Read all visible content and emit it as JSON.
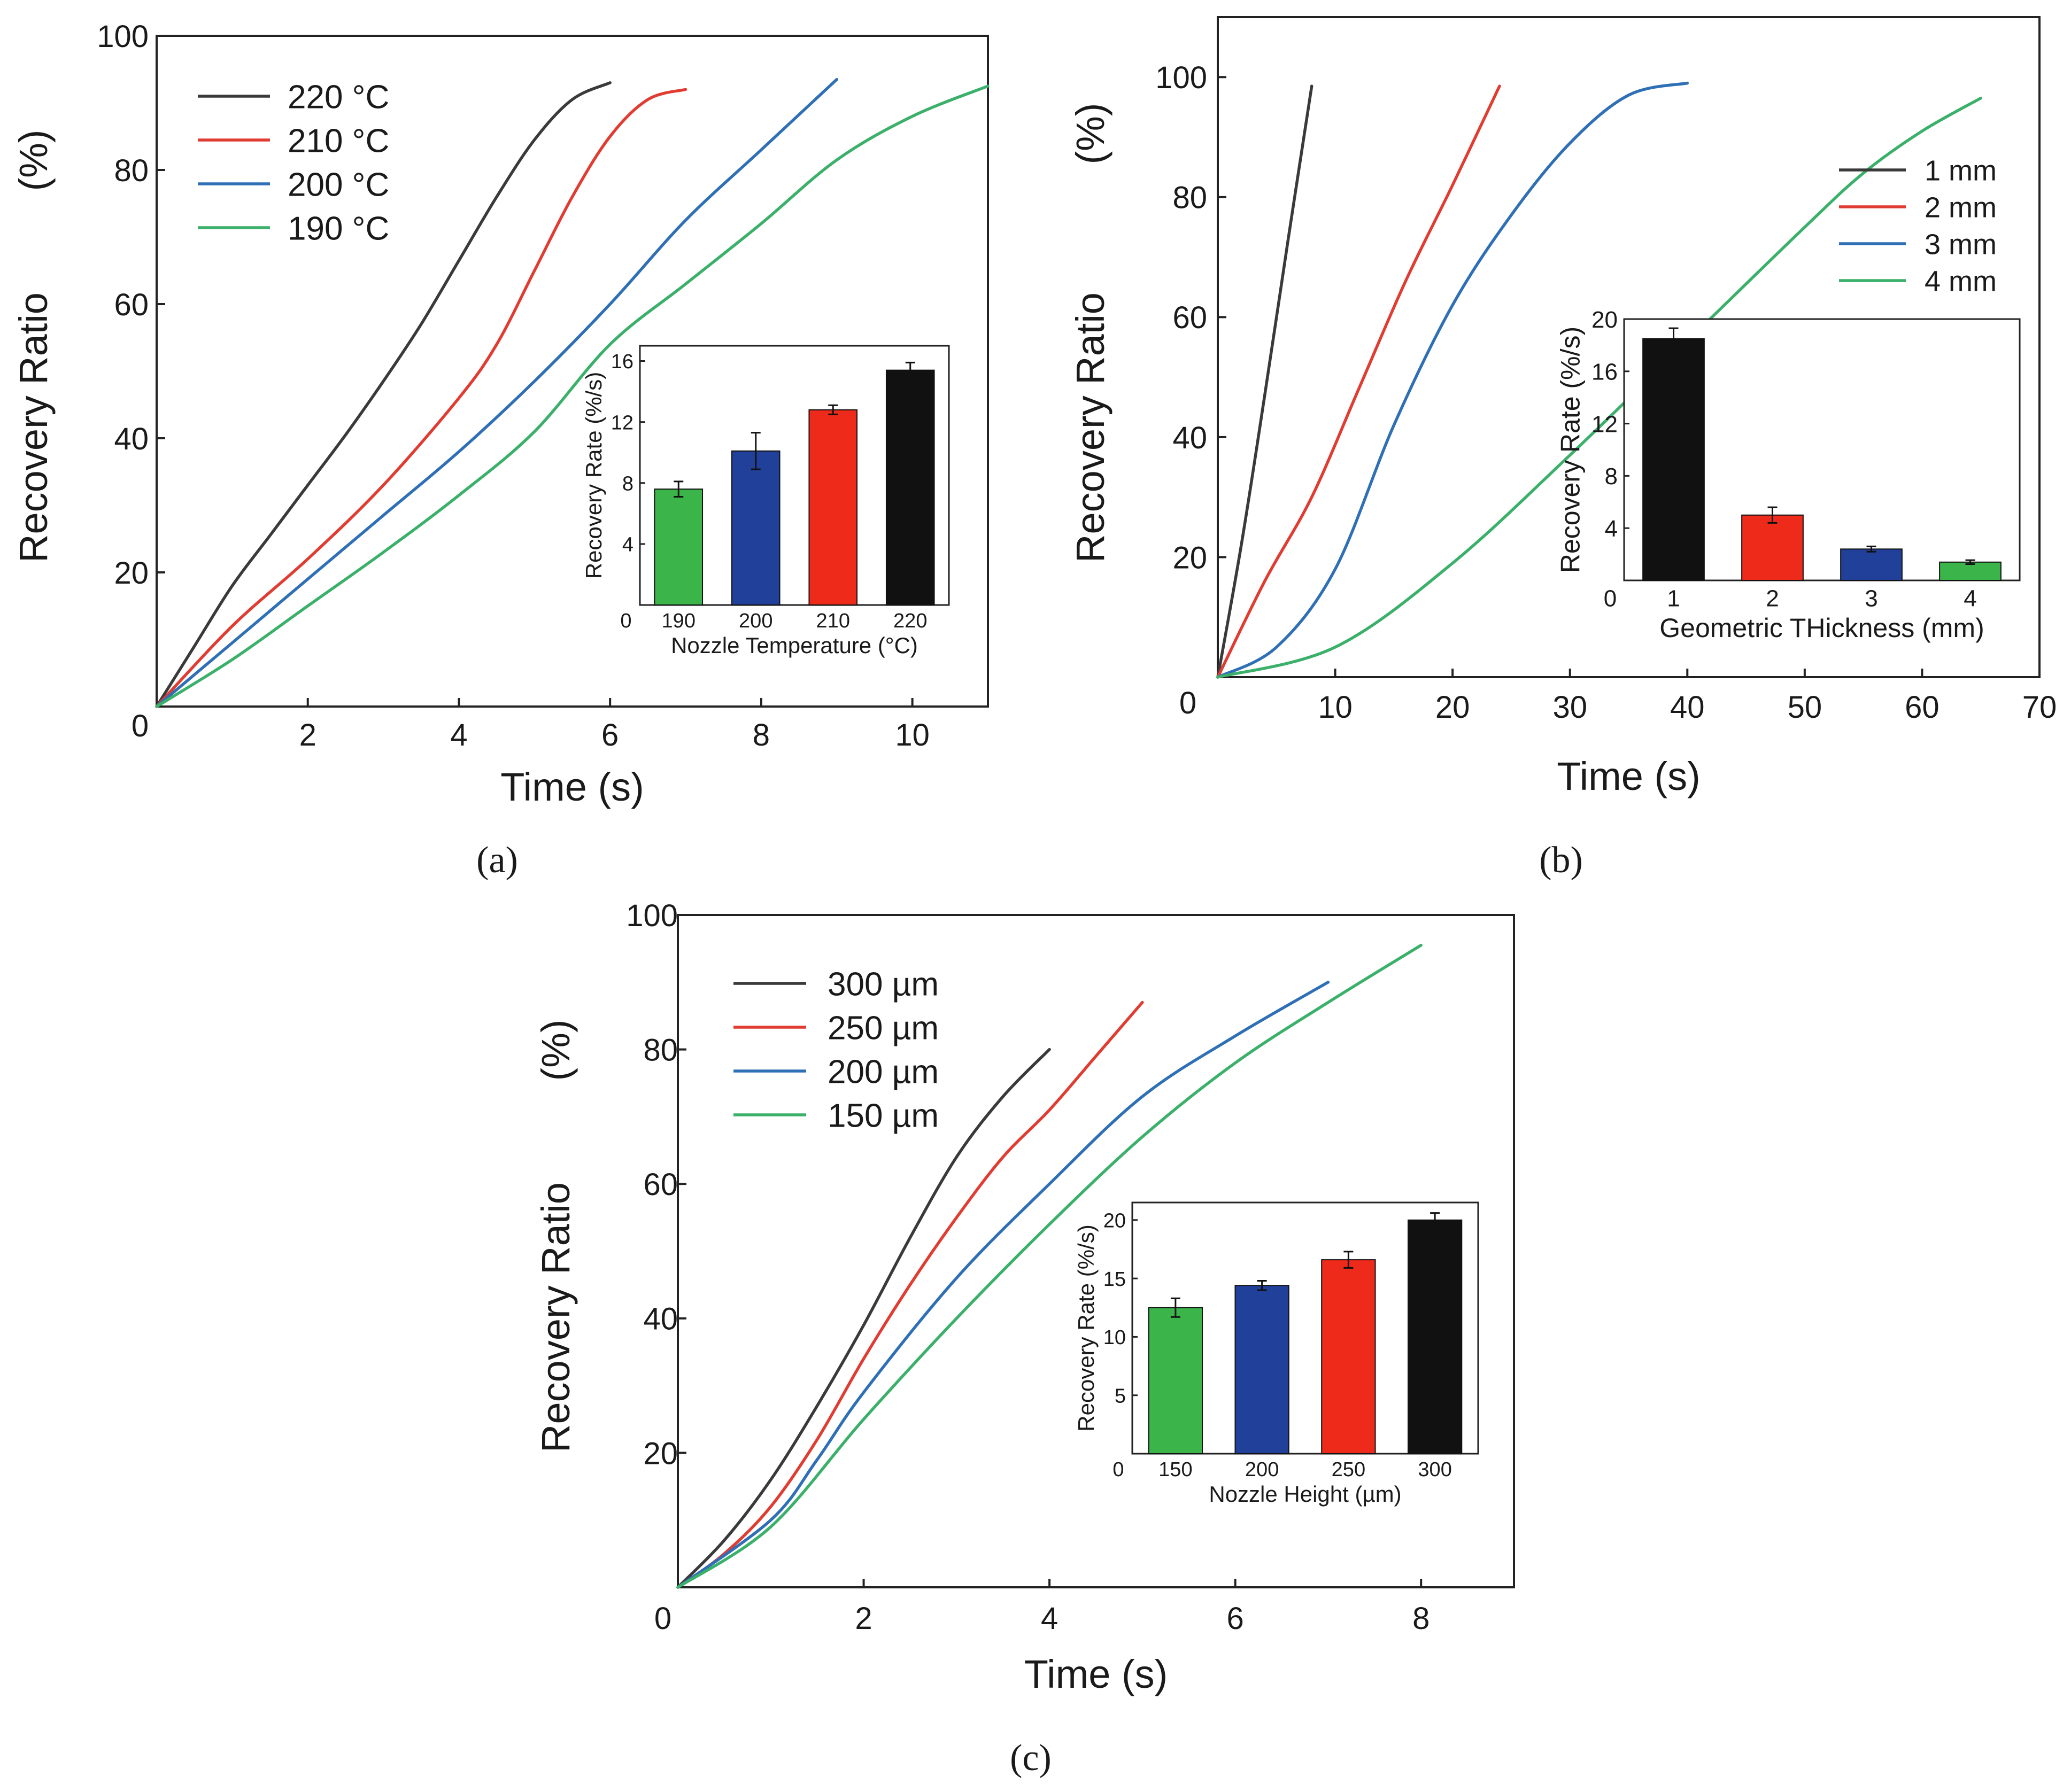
{
  "chart_data": [
    {
      "panel": "a",
      "caption": "(a)",
      "type": "line",
      "xlabel": "Time (s)",
      "ylabel": "Recovery Ratio",
      "ylabel_unit": "(%)",
      "xlim": [
        0,
        11
      ],
      "ylim": [
        0,
        100
      ],
      "xticks": [
        0,
        2,
        4,
        6,
        8,
        10
      ],
      "yticks": [
        0,
        20,
        40,
        60,
        80,
        100
      ],
      "legend_position": "top-left",
      "series": [
        {
          "name": "220 °C",
          "color": "#3a3a3a",
          "points": [
            [
              0,
              0
            ],
            [
              0.5,
              9
            ],
            [
              1,
              18
            ],
            [
              1.5,
              25.5
            ],
            [
              2,
              33
            ],
            [
              2.5,
              40.5
            ],
            [
              3,
              48.5
            ],
            [
              3.5,
              57
            ],
            [
              4,
              66.5
            ],
            [
              4.5,
              76
            ],
            [
              5,
              84.5
            ],
            [
              5.5,
              90.5
            ],
            [
              6,
              93
            ]
          ]
        },
        {
          "name": "210 °C",
          "color": "#e03c32",
          "points": [
            [
              0,
              0
            ],
            [
              1,
              12
            ],
            [
              2,
              22
            ],
            [
              3,
              33
            ],
            [
              4,
              46
            ],
            [
              4.5,
              54
            ],
            [
              5,
              65
            ],
            [
              5.5,
              76
            ],
            [
              6,
              85
            ],
            [
              6.5,
              90.5
            ],
            [
              7,
              92
            ]
          ]
        },
        {
          "name": "200 °C",
          "color": "#2f6fb5",
          "points": [
            [
              0,
              0
            ],
            [
              1,
              9.5
            ],
            [
              2,
              19
            ],
            [
              3,
              28.5
            ],
            [
              4,
              38
            ],
            [
              5,
              48.5
            ],
            [
              6,
              60
            ],
            [
              7,
              72.5
            ],
            [
              8,
              83
            ],
            [
              9,
              93.5
            ]
          ]
        },
        {
          "name": "190 °C",
          "color": "#3bb06a",
          "points": [
            [
              0,
              0
            ],
            [
              1,
              7
            ],
            [
              2,
              15
            ],
            [
              3,
              23
            ],
            [
              4,
              31.5
            ],
            [
              5,
              41
            ],
            [
              6,
              54
            ],
            [
              7,
              63
            ],
            [
              8,
              72
            ],
            [
              9,
              81.5
            ],
            [
              10,
              88
            ],
            [
              11,
              92.5
            ]
          ]
        }
      ],
      "inset": {
        "type": "bar",
        "xlabel": "Nozzle Temperature (°C)",
        "ylabel": "Recovery Rate  (%/s)",
        "ylim": [
          0,
          17
        ],
        "yticks": [
          4,
          8,
          12,
          16
        ],
        "zero_label": "0",
        "categories": [
          "190",
          "200",
          "210",
          "220"
        ],
        "values": [
          7.6,
          10.1,
          12.8,
          15.4
        ],
        "errors": [
          0.5,
          1.2,
          0.3,
          0.5
        ],
        "colors": [
          "#3bb54a",
          "#21409a",
          "#ee2a1b",
          "#111111"
        ]
      }
    },
    {
      "panel": "b",
      "caption": "(b)",
      "type": "line",
      "xlabel": "Time (s)",
      "ylabel": "Recovery Ratio",
      "ylabel_unit": "(%)",
      "xlim": [
        0,
        70
      ],
      "ylim": [
        0,
        110
      ],
      "xticks": [
        0,
        10,
        20,
        30,
        40,
        50,
        60,
        70
      ],
      "yticks": [
        20,
        40,
        60,
        80,
        100
      ],
      "legend_position": "top-right",
      "series": [
        {
          "name": "1 mm",
          "color": "#3a3a3a",
          "points": [
            [
              0,
              0
            ],
            [
              2,
              22
            ],
            [
              4,
              47
            ],
            [
              6,
              73
            ],
            [
              8,
              98.5
            ]
          ]
        },
        {
          "name": "2 mm",
          "color": "#e03c32",
          "points": [
            [
              0,
              0
            ],
            [
              4,
              16
            ],
            [
              8,
              30
            ],
            [
              12,
              48
            ],
            [
              16,
              66
            ],
            [
              20,
              82
            ],
            [
              24,
              98.5
            ]
          ]
        },
        {
          "name": "3 mm",
          "color": "#2f6fb5",
          "points": [
            [
              0,
              0
            ],
            [
              5,
              5
            ],
            [
              10,
              18
            ],
            [
              15,
              42
            ],
            [
              20,
              62
            ],
            [
              25,
              77
            ],
            [
              30,
              89
            ],
            [
              35,
              97
            ],
            [
              40,
              99
            ]
          ]
        },
        {
          "name": "4 mm",
          "color": "#3bb06a",
          "points": [
            [
              0,
              0
            ],
            [
              10,
              5
            ],
            [
              20,
              19
            ],
            [
              30,
              37
            ],
            [
              40,
              56
            ],
            [
              50,
              75
            ],
            [
              55,
              84
            ],
            [
              60,
              91
            ],
            [
              65,
              96.5
            ]
          ]
        }
      ],
      "inset": {
        "type": "bar",
        "xlabel": "Geometric THickness (mm)",
        "ylabel": "Recovery Rate  (%/s)",
        "ylim": [
          0,
          20
        ],
        "yticks": [
          4,
          8,
          12,
          16,
          20
        ],
        "zero_label": "0",
        "categories": [
          "1",
          "2",
          "3",
          "4"
        ],
        "values": [
          18.5,
          5.0,
          2.4,
          1.4
        ],
        "errors": [
          0.8,
          0.6,
          0.2,
          0.15
        ],
        "colors": [
          "#111111",
          "#ee2a1b",
          "#21409a",
          "#3bb54a"
        ]
      }
    },
    {
      "panel": "c",
      "caption": "(c)",
      "type": "line",
      "xlabel": "Time (s)",
      "ylabel": "Recovery Ratio",
      "ylabel_unit": "(%)",
      "xlim": [
        0,
        9
      ],
      "ylim": [
        0,
        100
      ],
      "xticks": [
        0,
        2,
        4,
        6,
        8
      ],
      "yticks": [
        20,
        40,
        60,
        80,
        100
      ],
      "legend_position": "top-left",
      "series": [
        {
          "name": "300 µm",
          "color": "#3a3a3a",
          "points": [
            [
              0,
              0
            ],
            [
              0.5,
              7
            ],
            [
              1,
              16
            ],
            [
              1.5,
              27
            ],
            [
              2,
              39
            ],
            [
              2.5,
              52
            ],
            [
              3,
              64
            ],
            [
              3.5,
              73
            ],
            [
              4,
              80
            ]
          ]
        },
        {
          "name": "250 µm",
          "color": "#e03c32",
          "points": [
            [
              0,
              0
            ],
            [
              0.5,
              5
            ],
            [
              1,
              12
            ],
            [
              1.5,
              22
            ],
            [
              2,
              34
            ],
            [
              2.5,
              45
            ],
            [
              3,
              55
            ],
            [
              3.5,
              64
            ],
            [
              4,
              71
            ],
            [
              4.5,
              79
            ],
            [
              5,
              87
            ]
          ]
        },
        {
          "name": "200 µm",
          "color": "#2f6fb5",
          "points": [
            [
              0,
              0
            ],
            [
              1,
              10
            ],
            [
              1.5,
              19
            ],
            [
              2,
              29
            ],
            [
              3,
              46
            ],
            [
              4,
              60
            ],
            [
              5,
              73
            ],
            [
              6,
              82
            ],
            [
              7,
              90
            ]
          ]
        },
        {
          "name": "150 µm",
          "color": "#3bb06a",
          "points": [
            [
              0,
              0
            ],
            [
              1,
              9
            ],
            [
              2,
              25
            ],
            [
              3,
              40
            ],
            [
              4,
              54
            ],
            [
              5,
              67
            ],
            [
              6,
              78
            ],
            [
              7,
              87
            ],
            [
              8,
              95.5
            ]
          ]
        }
      ],
      "inset": {
        "type": "bar",
        "xlabel": "Nozzle Height (µm)",
        "ylabel": "Recovery Rate  (%/s)",
        "ylim": [
          0,
          21.5
        ],
        "yticks": [
          5,
          10,
          15,
          20
        ],
        "zero_label": "0",
        "categories": [
          "150",
          "200",
          "250",
          "300"
        ],
        "values": [
          12.5,
          14.4,
          16.6,
          20.0
        ],
        "errors": [
          0.8,
          0.4,
          0.7,
          0.6
        ],
        "colors": [
          "#3bb54a",
          "#21409a",
          "#ee2a1b",
          "#111111"
        ]
      }
    }
  ]
}
